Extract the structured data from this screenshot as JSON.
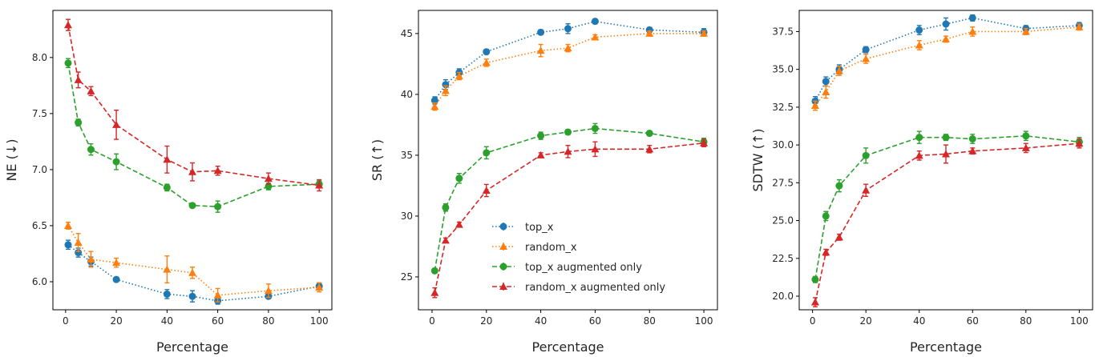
{
  "chart_data": [
    {
      "type": "line",
      "xlabel": "Percentage",
      "ylabel": "NE (↓)",
      "xlim": [
        -5,
        105
      ],
      "ylim": [
        5.75,
        8.42
      ],
      "xticks": [
        0,
        20,
        40,
        60,
        80,
        100
      ],
      "yticks": [
        6.0,
        6.5,
        7.0,
        7.5,
        8.0
      ],
      "ytick_labels": [
        "6.0",
        "6.5",
        "7.0",
        "7.5",
        "8.0"
      ],
      "grid": false,
      "legend": false,
      "series": [
        {
          "name": "top_x",
          "x": [
            1,
            5,
            10,
            20,
            40,
            50,
            60,
            80,
            100
          ],
          "y": [
            6.33,
            6.26,
            6.18,
            6.02,
            5.89,
            5.87,
            5.83,
            5.87,
            5.96
          ],
          "err": [
            0.04,
            0.04,
            0.04,
            0.02,
            0.04,
            0.05,
            0.03,
            0.02,
            0.03
          ]
        },
        {
          "name": "random_x",
          "x": [
            1,
            5,
            10,
            20,
            40,
            50,
            60,
            80,
            100
          ],
          "y": [
            6.5,
            6.35,
            6.2,
            6.17,
            6.11,
            6.08,
            5.88,
            5.92,
            5.95
          ],
          "err": [
            0.03,
            0.08,
            0.07,
            0.04,
            0.12,
            0.05,
            0.06,
            0.06,
            0.04
          ]
        },
        {
          "name": "top_x augmented only",
          "x": [
            1,
            5,
            10,
            20,
            40,
            50,
            60,
            80,
            100
          ],
          "y": [
            7.95,
            7.42,
            7.18,
            7.07,
            6.84,
            6.68,
            6.67,
            6.85,
            6.87
          ],
          "err": [
            0.04,
            0.03,
            0.05,
            0.07,
            0.03,
            0.01,
            0.05,
            0.03,
            0.03
          ]
        },
        {
          "name": "random_x augmented only",
          "x": [
            1,
            5,
            10,
            20,
            40,
            50,
            60,
            80,
            100
          ],
          "y": [
            8.29,
            7.8,
            7.7,
            7.4,
            7.09,
            6.98,
            6.99,
            6.92,
            6.86
          ],
          "err": [
            0.05,
            0.07,
            0.04,
            0.13,
            0.12,
            0.08,
            0.04,
            0.05,
            0.05
          ]
        }
      ]
    },
    {
      "type": "line",
      "xlabel": "Percentage",
      "ylabel": "SR (↑)",
      "xlim": [
        -5,
        105
      ],
      "ylim": [
        22.3,
        46.9
      ],
      "xticks": [
        0,
        20,
        40,
        60,
        80,
        100
      ],
      "yticks": [
        25,
        30,
        35,
        40,
        45
      ],
      "ytick_labels": [
        "25",
        "30",
        "35",
        "40",
        "45"
      ],
      "grid": false,
      "legend": "lower-center",
      "series": [
        {
          "name": "top_x",
          "x": [
            1,
            5,
            10,
            20,
            40,
            50,
            60,
            80,
            100
          ],
          "y": [
            39.5,
            40.8,
            41.8,
            43.5,
            45.1,
            45.4,
            46.0,
            45.3,
            45.1
          ],
          "err": [
            0.3,
            0.4,
            0.3,
            0.2,
            0.2,
            0.4,
            0.2,
            0.2,
            0.3
          ]
        },
        {
          "name": "random_x",
          "x": [
            1,
            5,
            10,
            20,
            40,
            50,
            60,
            80,
            100
          ],
          "y": [
            39.0,
            40.3,
            41.5,
            42.6,
            43.6,
            43.8,
            44.7,
            45.0,
            45.0
          ],
          "err": [
            0.3,
            0.4,
            0.3,
            0.3,
            0.5,
            0.3,
            0.2,
            0.2,
            0.2
          ]
        },
        {
          "name": "top_x augmented only",
          "x": [
            1,
            5,
            10,
            20,
            40,
            50,
            60,
            80,
            100
          ],
          "y": [
            25.5,
            30.7,
            33.1,
            35.2,
            36.6,
            36.9,
            37.2,
            36.8,
            36.1
          ],
          "err": [
            0.2,
            0.3,
            0.4,
            0.5,
            0.3,
            0.2,
            0.4,
            0.2,
            0.3
          ]
        },
        {
          "name": "random_x augmented only",
          "x": [
            1,
            5,
            10,
            20,
            40,
            50,
            60,
            80,
            100
          ],
          "y": [
            23.7,
            28.0,
            29.3,
            32.1,
            35.0,
            35.3,
            35.5,
            35.5,
            36.0
          ],
          "err": [
            0.4,
            0.2,
            0.2,
            0.5,
            0.2,
            0.5,
            0.6,
            0.3,
            0.3
          ]
        }
      ]
    },
    {
      "type": "line",
      "xlabel": "Percentage",
      "ylabel": "SDTW (↑)",
      "xlim": [
        -5,
        105
      ],
      "ylim": [
        19.1,
        38.9
      ],
      "xticks": [
        0,
        20,
        40,
        60,
        80,
        100
      ],
      "yticks": [
        20.0,
        22.5,
        25.0,
        27.5,
        30.0,
        32.5,
        35.0,
        37.5
      ],
      "ytick_labels": [
        "20.0",
        "22.5",
        "25.0",
        "27.5",
        "30.0",
        "32.5",
        "35.0",
        "37.5"
      ],
      "grid": false,
      "legend": false,
      "series": [
        {
          "name": "top_x",
          "x": [
            1,
            5,
            10,
            20,
            40,
            50,
            60,
            80,
            100
          ],
          "y": [
            32.9,
            34.2,
            35.0,
            36.3,
            37.6,
            38.0,
            38.4,
            37.7,
            37.9
          ],
          "err": [
            0.3,
            0.3,
            0.3,
            0.2,
            0.3,
            0.4,
            0.2,
            0.2,
            0.2
          ]
        },
        {
          "name": "random_x",
          "x": [
            1,
            5,
            10,
            20,
            40,
            50,
            60,
            80,
            100
          ],
          "y": [
            32.6,
            33.5,
            34.9,
            35.7,
            36.6,
            37.0,
            37.5,
            37.5,
            37.8
          ],
          "err": [
            0.3,
            0.4,
            0.3,
            0.3,
            0.3,
            0.2,
            0.3,
            0.2,
            0.2
          ]
        },
        {
          "name": "top_x augmented only",
          "x": [
            1,
            5,
            10,
            20,
            40,
            50,
            60,
            80,
            100
          ],
          "y": [
            21.1,
            25.3,
            27.3,
            29.3,
            30.5,
            30.5,
            30.4,
            30.6,
            30.2
          ],
          "err": [
            0.2,
            0.3,
            0.4,
            0.5,
            0.4,
            0.2,
            0.3,
            0.3,
            0.3
          ]
        },
        {
          "name": "random_x augmented only",
          "x": [
            1,
            5,
            10,
            20,
            40,
            50,
            60,
            80,
            100
          ],
          "y": [
            19.6,
            22.9,
            23.9,
            27.0,
            29.3,
            29.4,
            29.6,
            29.8,
            30.1
          ],
          "err": [
            0.3,
            0.2,
            0.2,
            0.4,
            0.3,
            0.6,
            0.2,
            0.3,
            0.3
          ]
        }
      ]
    }
  ],
  "series_styles": [
    {
      "color": "#1f77b4",
      "marker": "circle",
      "line": "dotted"
    },
    {
      "color": "#ff7f0e",
      "marker": "triangle",
      "line": "dotted"
    },
    {
      "color": "#2ca02c",
      "marker": "circle",
      "line": "dashed"
    },
    {
      "color": "#d62728",
      "marker": "triangle",
      "line": "dashed"
    }
  ]
}
